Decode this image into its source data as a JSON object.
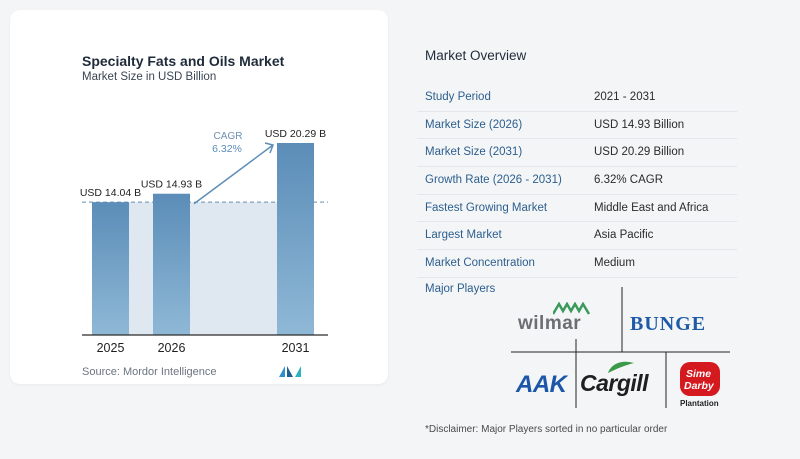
{
  "chart_title": "Specialty Fats and Oils Market",
  "chart_subtitle": "Market Size in USD Billion",
  "chart_data": {
    "type": "bar",
    "categories": [
      "2025",
      "2026",
      "2031"
    ],
    "values": [
      14.04,
      14.93,
      20.29
    ],
    "value_labels": [
      "USD 14.04 B",
      "USD 14.93 B",
      "USD 20.29 B"
    ],
    "title": "Specialty Fats and Oils Market",
    "ylabel": "Market Size in USD Billion",
    "ylim": [
      0,
      20.29
    ],
    "annotation": {
      "label": "CAGR",
      "value": "6.32%"
    },
    "colors": {
      "bar": "#5b8db8",
      "bar_light": "#8fb8d6",
      "band": "#dfe8f1",
      "axis": "#2a2a2a"
    }
  },
  "source": "Source:  Mordor Intelligence",
  "overview": {
    "title": "Market Overview",
    "rows": [
      {
        "key": "Study Period",
        "value": "2021 - 2031"
      },
      {
        "key": "Market Size (2026)",
        "value": "USD 14.93 Billion"
      },
      {
        "key": "Market Size (2031)",
        "value": "USD 20.29 Billion"
      },
      {
        "key": "Growth Rate (2026 - 2031)",
        "value": "6.32% CAGR"
      },
      {
        "key": "Fastest Growing Market",
        "value": "Middle East and Africa"
      },
      {
        "key": "Largest Market",
        "value": "Asia Pacific"
      },
      {
        "key": "Market Concentration",
        "value": "Medium"
      }
    ]
  },
  "players": {
    "label": "Major Players",
    "logos": {
      "wilmar": "wilmar",
      "bunge": "BUNGE",
      "aak": "AAK",
      "cargill": "Cargill",
      "sime_line1": "Sime",
      "sime_line2": "Darby",
      "sime_line3": "Plantation"
    }
  },
  "disclaimer": "*Disclaimer: Major Players sorted in no particular order"
}
